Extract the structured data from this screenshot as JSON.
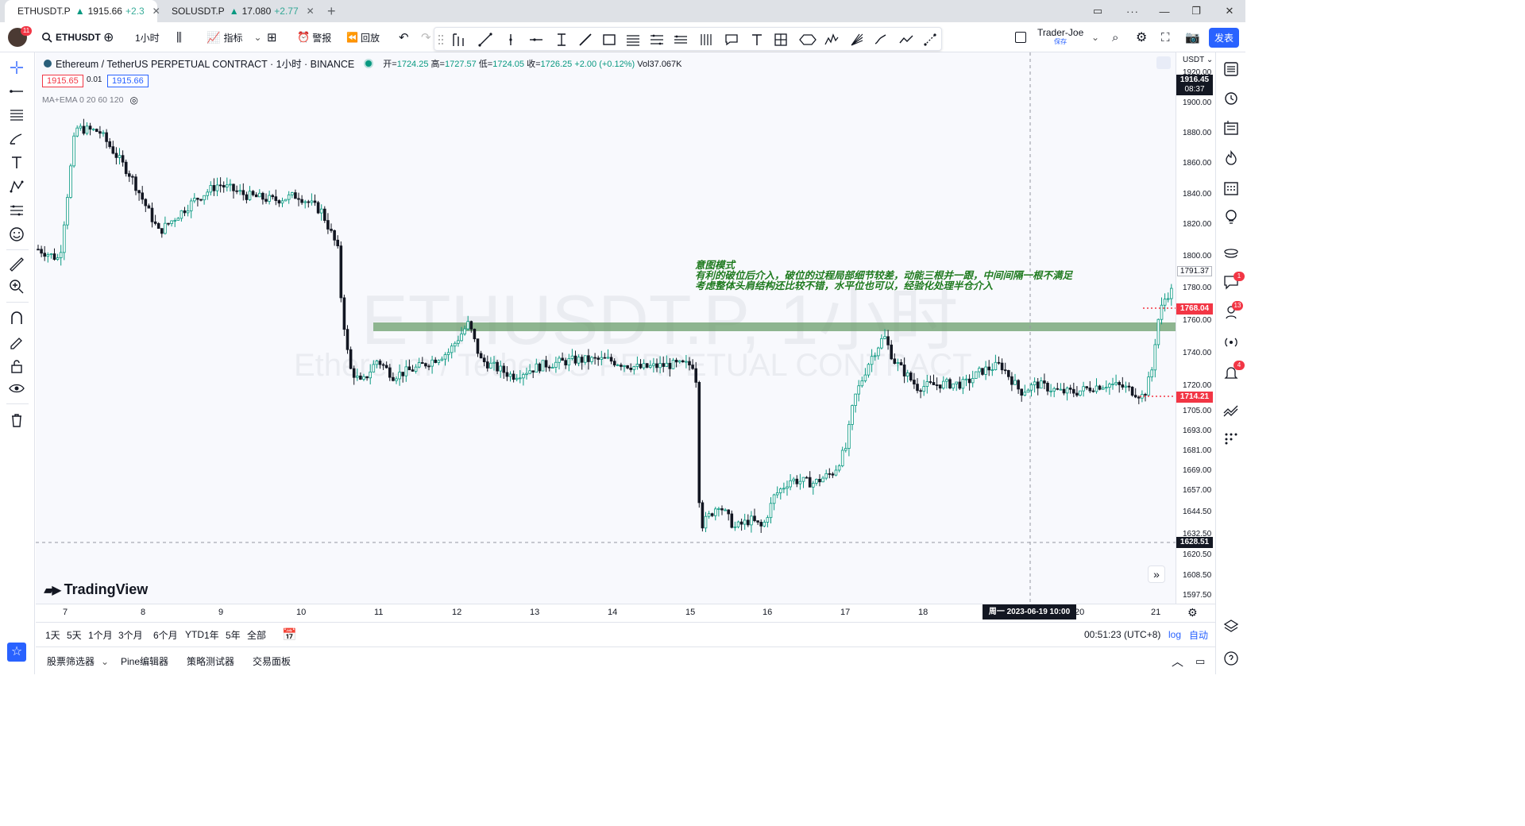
{
  "tabs": [
    {
      "symbol": "ETHUSDT.P",
      "arrow": "▲",
      "price": "1915.66",
      "change": "+2.3"
    },
    {
      "symbol": "SOLUSDT.P",
      "arrow": "▲",
      "price": "17.080",
      "change": "+2.77"
    }
  ],
  "toolbar": {
    "notification_count": "11",
    "symbol": "ETHUSDT",
    "interval": "1小时",
    "indicators": "指标",
    "alert": "警报",
    "replay": "回放",
    "layout_name": "Trader-Joe",
    "layout_saved": "保存",
    "publish": "发表"
  },
  "legend": {
    "title": "Ethereum / TetherUS PERPETUAL CONTRACT · 1小时 · BINANCE",
    "open_label": "开",
    "open": "1724.25",
    "high_label": "高",
    "high": "1727.57",
    "low_label": "低",
    "low": "1724.05",
    "close_label": "收",
    "close": "1726.25",
    "change": "+2.00 (+0.12%)",
    "volume": "Vol37.067K",
    "sell_price": "1915.65",
    "spread": "0.01",
    "buy_price": "1915.66",
    "indicator": "MA+EMA 0 20 60 120"
  },
  "watermark": {
    "line1": "ETHUSDT.P, 1小时",
    "line2": "Ethereum / TetherUS PERPETUAL CONTRACT"
  },
  "annotation": {
    "line1": "意图模式",
    "line2": "有利的破位后介入，破位的过程局部细节较差，动能三根并一跟，中间间隔一根不满足",
    "line3": "考虑整体头肩结构还比较不错，水平位也可以，经验化处理半仓介入"
  },
  "brand": "TradingView",
  "price_axis": {
    "currency": "USDT",
    "labels": [
      "1920.00",
      "1900.00",
      "1880.00",
      "1860.00",
      "1840.00",
      "1820.00",
      "1800.00",
      "1780.00",
      "1760.00",
      "1740.00",
      "1720.00",
      "1705.00",
      "1693.00",
      "1681.00",
      "1669.00",
      "1657.00",
      "1644.50",
      "1632.50",
      "1620.50",
      "1608.50",
      "1597.50"
    ],
    "current_price": "1916.45",
    "countdown": "08:37",
    "level_1791": "1791.37",
    "level_red_top": "1768.04",
    "level_red_bottom": "1714.21",
    "crosshair_price": "1628.51"
  },
  "time_axis": {
    "labels": [
      "7",
      "8",
      "9",
      "10",
      "11",
      "12",
      "13",
      "14",
      "15",
      "16",
      "17",
      "18",
      "20",
      "21"
    ],
    "crosshair": "周一 2023-06-19   10:00"
  },
  "ranges": [
    "1天",
    "5天",
    "1个月",
    "3个月",
    "6个月",
    "YTD",
    "1年",
    "5年",
    "全部"
  ],
  "status": {
    "clock": "00:51:23 (UTC+8)",
    "log": "log",
    "auto": "自动"
  },
  "bottom_tabs": [
    "股票筛选器",
    "Pine编辑器",
    "策略测试器",
    "交易面板"
  ],
  "right_badges": {
    "alerts": "1",
    "ideas": "13",
    "notifications": "4"
  },
  "colors": {
    "up": "#089981",
    "down": "#131722",
    "zone": "#6b9e6b",
    "accent": "#2962ff",
    "red": "#f23645"
  }
}
